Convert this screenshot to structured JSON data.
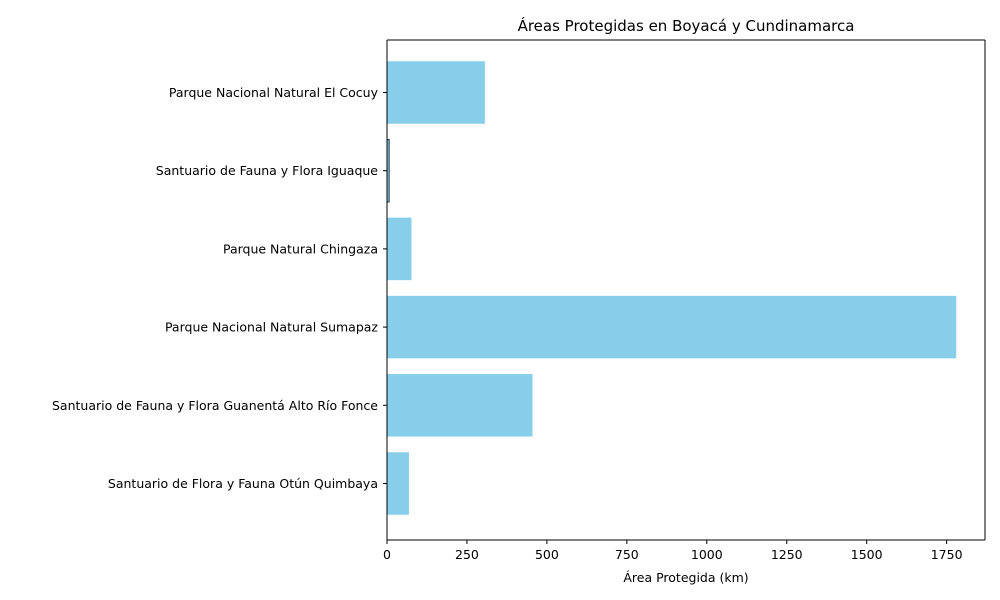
{
  "chart_data": {
    "type": "bar",
    "orientation": "horizontal",
    "title": "Áreas Protegidas en Boyacá y Cundinamarca",
    "xlabel": "Área Protegida (km)",
    "ylabel": "",
    "categories": [
      "Parque Nacional Natural El Cocuy",
      "Santuario de Fauna y Flora Iguaque",
      "Parque Natural Chingaza",
      "Parque Nacional Natural Sumapaz",
      "Santuario de Fauna y Flora Guanentá Alto Río Fonce",
      "Santuario de Flora y Fauna Otún Quimbaya"
    ],
    "values": [
      306,
      6.75,
      76.6,
      1780,
      455,
      68.6
    ],
    "xlim": [
      0,
      1870
    ],
    "xticks": [
      0,
      250,
      500,
      750,
      1000,
      1250,
      1500,
      1750
    ],
    "xtick_labels": [
      "0",
      "250",
      "500",
      "750",
      "1000",
      "1250",
      "1500",
      "1750"
    ],
    "grid": false,
    "colors": {
      "bar": "#87ceeb",
      "axis": "#000000"
    }
  }
}
